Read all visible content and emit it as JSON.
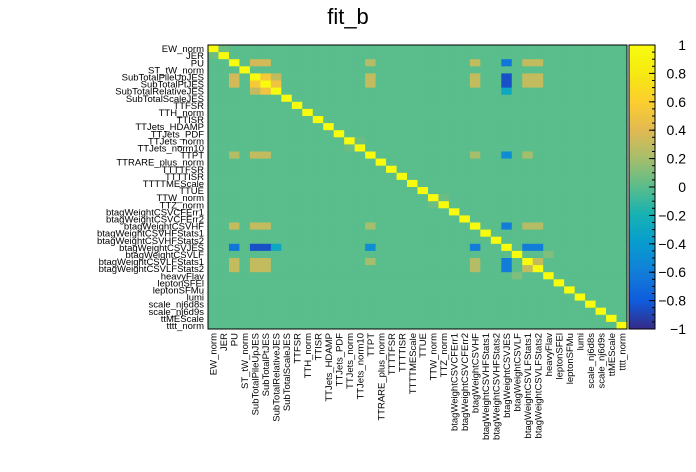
{
  "chart_data": {
    "type": "heatmap",
    "title": "fit_b",
    "xlabel": "",
    "ylabel": "",
    "zlim": [
      -1,
      1
    ],
    "colorbar_ticks": [
      "1",
      "0.8",
      "0.6",
      "0.4",
      "0.2",
      "0",
      "−0.2",
      "−0.4",
      "−0.6",
      "−0.8",
      "−1"
    ],
    "colorbar_values": [
      1,
      0.8,
      0.6,
      0.4,
      0.2,
      0,
      -0.2,
      -0.4,
      -0.6,
      -0.8,
      -1
    ],
    "labels": [
      "EW_norm",
      "JER",
      "PU",
      "ST_tW_norm",
      "SubTotalPileUpJES",
      "SubTotalPtJES",
      "SubTotalRelativeJES",
      "SubTotalScaleJES",
      "TTFSR",
      "TTH_norm",
      "TTISR",
      "TTJets_HDAMP",
      "TTJets_PDF",
      "TTJets_norm",
      "TTJets_norm10",
      "TTPT",
      "TTRARE_plus_norm",
      "TTTTFSR",
      "TTTTISR",
      "TTTTMEScale",
      "TTUE",
      "TTW_norm",
      "TTZ_norm",
      "btagWeightCSVCFErr1",
      "btagWeightCSVCFErr2",
      "btagWeightCSVHF",
      "btagWeightCSVHFStats1",
      "btagWeightCSVHFStats2",
      "btagWeightCSVJES",
      "btagWeightCSVLF",
      "btagWeightCSVLFStats1",
      "btagWeightCSVLFStats2",
      "heavyFlav",
      "leptonSFEl",
      "leptonSFMu",
      "lumi",
      "scale_nj6d8s",
      "scale_nj6d9s",
      "ttMEScale",
      "tttt_norm"
    ],
    "correlations_nonzero": [
      {
        "i": 0,
        "j": 1,
        "value": 0.05
      },
      {
        "i": 2,
        "j": 4,
        "value": 0.35
      },
      {
        "i": 2,
        "j": 5,
        "value": 0.35
      },
      {
        "i": 2,
        "j": 15,
        "value": 0.25
      },
      {
        "i": 2,
        "j": 25,
        "value": 0.3
      },
      {
        "i": 2,
        "j": 28,
        "value": -0.65
      },
      {
        "i": 2,
        "j": 30,
        "value": 0.3
      },
      {
        "i": 2,
        "j": 31,
        "value": 0.3
      },
      {
        "i": 4,
        "j": 5,
        "value": 0.55
      },
      {
        "i": 4,
        "j": 6,
        "value": 0.3
      },
      {
        "i": 4,
        "j": 15,
        "value": 0.3
      },
      {
        "i": 4,
        "j": 25,
        "value": 0.3
      },
      {
        "i": 4,
        "j": 28,
        "value": -0.85
      },
      {
        "i": 4,
        "j": 30,
        "value": 0.3
      },
      {
        "i": 4,
        "j": 31,
        "value": 0.3
      },
      {
        "i": 5,
        "j": 6,
        "value": 0.5
      },
      {
        "i": 5,
        "j": 15,
        "value": 0.3
      },
      {
        "i": 5,
        "j": 25,
        "value": 0.3
      },
      {
        "i": 5,
        "j": 28,
        "value": -0.85
      },
      {
        "i": 5,
        "j": 30,
        "value": 0.3
      },
      {
        "i": 5,
        "j": 31,
        "value": 0.3
      },
      {
        "i": 6,
        "j": 28,
        "value": -0.3
      },
      {
        "i": 15,
        "j": 25,
        "value": 0.2
      },
      {
        "i": 15,
        "j": 28,
        "value": -0.5
      },
      {
        "i": 15,
        "j": 30,
        "value": 0.2
      },
      {
        "i": 25,
        "j": 28,
        "value": -0.6
      },
      {
        "i": 25,
        "j": 30,
        "value": 0.25
      },
      {
        "i": 25,
        "j": 31,
        "value": 0.25
      },
      {
        "i": 28,
        "j": 30,
        "value": -0.6
      },
      {
        "i": 28,
        "j": 31,
        "value": -0.6
      },
      {
        "i": 30,
        "j": 31,
        "value": 0.3
      },
      {
        "i": 29,
        "j": 32,
        "value": 0.1
      },
      {
        "i": 13,
        "j": 14,
        "value": 0.05
      },
      {
        "i": 21,
        "j": 22,
        "value": 0.05
      }
    ]
  }
}
